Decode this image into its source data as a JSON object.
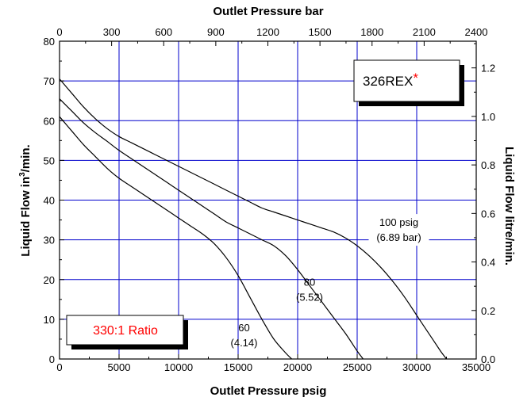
{
  "chart_data": {
    "type": "line",
    "x_bottom": {
      "label": "Outlet Pressure psig",
      "range": [
        0,
        35000
      ],
      "ticks": [
        0,
        5000,
        10000,
        15000,
        20000,
        25000,
        30000,
        35000
      ]
    },
    "x_top": {
      "label": "Outlet Pressure bar",
      "range": [
        0,
        2400
      ],
      "ticks": [
        0,
        300,
        600,
        900,
        1200,
        1500,
        1800,
        2100,
        2400
      ]
    },
    "y_left": {
      "label_main": "Liquid Flow in",
      "label_sup": "3",
      "label_tail": "/min.",
      "range": [
        0,
        80
      ],
      "ticks": [
        0,
        10,
        20,
        30,
        40,
        50,
        60,
        70,
        80
      ]
    },
    "y_right": {
      "label": "Liquid Flow litre/min.",
      "range": [
        0,
        1.31
      ],
      "ticks": [
        "0.0",
        "0.2",
        "0.4",
        "0.6",
        "0.8",
        "1.0",
        "1.2"
      ]
    },
    "grid": true,
    "series": [
      {
        "name": "60 (4.14)",
        "line1": "60",
        "line2": "(4.14)",
        "x": [
          0,
          1000,
          2000,
          3000,
          4000,
          5000,
          6000,
          7000,
          8000,
          9000,
          10000,
          11000,
          12000,
          13000,
          14000,
          15000,
          16000,
          17000,
          18000,
          19000,
          19500
        ],
        "y": [
          61,
          57.5,
          54,
          51,
          48,
          45.5,
          43.5,
          41.5,
          39.5,
          37.5,
          35.5,
          33.5,
          31.5,
          29,
          25.5,
          21,
          15.5,
          10,
          5,
          1.5,
          0
        ]
      },
      {
        "name": "80 (5.52)",
        "line1": "80",
        "line2": "(5.52)",
        "x": [
          0,
          1000,
          2000,
          3000,
          4000,
          5000,
          6000,
          7000,
          8000,
          9000,
          10000,
          11000,
          12000,
          13000,
          14000,
          15000,
          16000,
          17000,
          18000,
          19000,
          20000,
          21000,
          22000,
          23000,
          24000,
          25000,
          25500
        ],
        "y": [
          65.5,
          62.5,
          59.5,
          57,
          54.8,
          52.5,
          50.5,
          48.5,
          46.5,
          44.5,
          42.5,
          40.5,
          38.5,
          36.5,
          34.5,
          33,
          31.5,
          30,
          28.5,
          26,
          22.5,
          18.5,
          14.5,
          10.5,
          6.5,
          2,
          0
        ]
      },
      {
        "name": "100 psig (6.89 bar)",
        "line1": "100 psig",
        "line2": "(6.89 bar)",
        "x": [
          0,
          1000,
          2000,
          3000,
          4000,
          5000,
          6000,
          7000,
          8000,
          9000,
          10000,
          11000,
          12000,
          13000,
          14000,
          15000,
          16000,
          17000,
          18000,
          19000,
          20000,
          21000,
          22000,
          23000,
          24000,
          25000,
          26000,
          27000,
          28000,
          29000,
          30000,
          31000,
          32000,
          32500
        ],
        "y": [
          70.5,
          67,
          63.5,
          60.5,
          58,
          56,
          54.5,
          53,
          51.5,
          50,
          48.5,
          47,
          45.5,
          44,
          42.5,
          41,
          39.5,
          38,
          37,
          36,
          35,
          34,
          33,
          32,
          30.5,
          28.5,
          26,
          23,
          19.5,
          15.5,
          11,
          6.5,
          2,
          0
        ]
      }
    ]
  },
  "annotations": {
    "model": "326REX",
    "model_mark": "*",
    "ratio": "330:1 Ratio"
  },
  "colors": {
    "grid": "#0000cc",
    "accent": "#ff0000",
    "curve": "#000000",
    "axis": "#000000"
  }
}
